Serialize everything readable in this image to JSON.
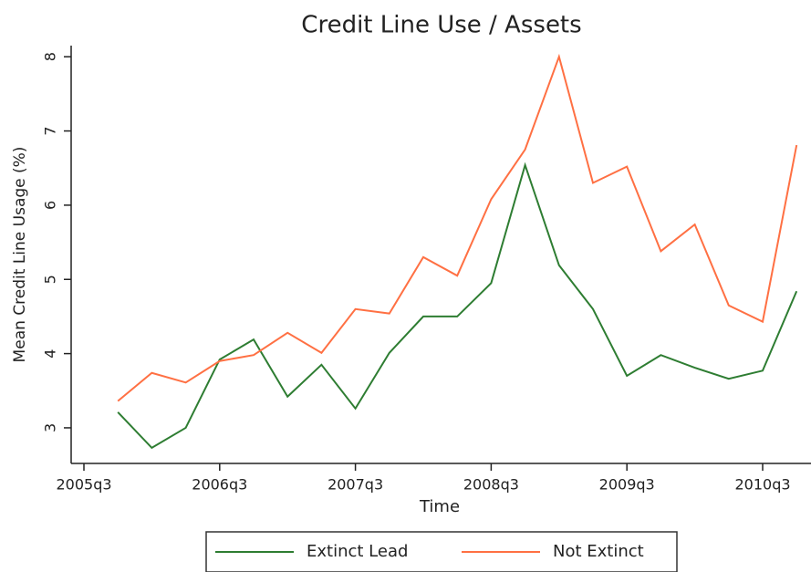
{
  "chart_data": {
    "type": "line",
    "title": "Credit Line Use / Assets",
    "x_label": "Time",
    "y_label": "Mean Credit Line Usage (%)",
    "categories": [
      "2005q3",
      null,
      null,
      null,
      "2006q3",
      null,
      null,
      null,
      "2007q3",
      null,
      null,
      null,
      "2008q3",
      null,
      null,
      null,
      "2009q3",
      null,
      null,
      null,
      "2010q3",
      null
    ],
    "series": [
      {
        "name": "Extinct Lead",
        "color": "#2e7d32",
        "values": [
          null,
          3.21,
          2.73,
          3.0,
          3.92,
          4.19,
          3.42,
          3.85,
          3.26,
          4.01,
          4.5,
          4.5,
          4.95,
          6.54,
          5.19,
          4.6,
          3.7,
          3.98,
          3.81,
          3.66,
          3.77,
          4.84
        ]
      },
      {
        "name": "Not Extinct",
        "color": "#ff7043",
        "values": [
          null,
          3.36,
          3.74,
          3.61,
          3.9,
          3.98,
          4.28,
          4.01,
          4.6,
          4.54,
          5.3,
          5.05,
          6.08,
          6.75,
          8.0,
          6.3,
          6.52,
          5.38,
          5.74,
          4.65,
          4.43,
          6.81
        ]
      }
    ],
    "ylim": [
      2.52,
      8.15
    ],
    "yticks": [
      3,
      4,
      5,
      6,
      7,
      8
    ],
    "grid": false,
    "legend": "bottom"
  }
}
